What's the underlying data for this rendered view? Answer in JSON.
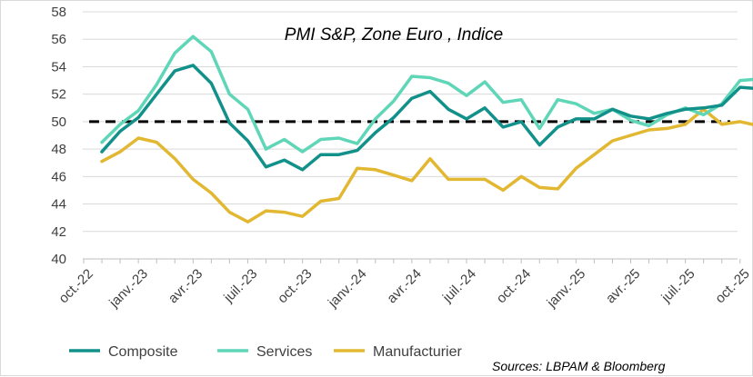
{
  "chart_data": {
    "type": "line",
    "title": "PMI S&P, Zone Euro , Indice",
    "source": "Sources: LBPAM & Bloomberg",
    "xlabel": "",
    "ylabel": "",
    "ylim": [
      40,
      58
    ],
    "yticks": [
      40,
      42,
      44,
      46,
      48,
      50,
      52,
      54,
      56,
      58
    ],
    "x_tick_labels": [
      "oct.-22",
      "janv.-23",
      "avr.-23",
      "juil.-23",
      "oct.-23",
      "janv.-24",
      "avr.-24",
      "juil.-24",
      "oct.-24",
      "janv.-25",
      "avr.-25",
      "juil.-25",
      "oct.-25"
    ],
    "x_tick_indices": [
      0,
      3,
      6,
      9,
      12,
      15,
      18,
      21,
      24,
      27,
      30,
      33,
      36
    ],
    "reference_line": {
      "value": 50,
      "style": "dashed",
      "color": "#000000"
    },
    "series": [
      {
        "name": "Composite",
        "color": "#12908a",
        "start_index": 1,
        "values": [
          47.8,
          49.3,
          50.3,
          52.0,
          53.7,
          54.1,
          52.8,
          49.9,
          48.6,
          46.7,
          47.2,
          46.5,
          47.6,
          47.6,
          47.9,
          49.2,
          50.3,
          51.7,
          52.2,
          50.9,
          50.2,
          51.0,
          49.6,
          50.0,
          48.3,
          49.6,
          50.2,
          50.2,
          50.9,
          50.4,
          50.2,
          50.6,
          50.9,
          51.0,
          51.2,
          52.5,
          52.4
        ]
      },
      {
        "name": "Services",
        "color": "#5fd6b7",
        "start_index": 1,
        "values": [
          48.5,
          49.8,
          50.8,
          52.7,
          55.0,
          56.2,
          55.1,
          52.0,
          50.9,
          48.0,
          48.7,
          47.8,
          48.7,
          48.8,
          48.4,
          50.2,
          51.5,
          53.3,
          53.2,
          52.8,
          51.9,
          52.9,
          51.4,
          51.6,
          49.5,
          51.6,
          51.3,
          50.6,
          50.9,
          50.1,
          49.7,
          50.5,
          51.0,
          50.5,
          51.3,
          53.0,
          53.1
        ]
      },
      {
        "name": "Manufacturier",
        "color": "#e2b832",
        "start_index": 1,
        "values": [
          47.1,
          47.8,
          48.8,
          48.5,
          47.3,
          45.8,
          44.8,
          43.4,
          42.7,
          43.5,
          43.4,
          43.1,
          44.2,
          44.4,
          46.6,
          46.5,
          46.1,
          45.7,
          47.3,
          45.8,
          45.8,
          45.8,
          45.0,
          46.0,
          45.2,
          45.1,
          46.6,
          47.6,
          48.6,
          49.0,
          49.4,
          49.5,
          49.8,
          50.9,
          49.8,
          50.0,
          49.7
        ]
      }
    ],
    "legend_position": "bottom-left"
  }
}
